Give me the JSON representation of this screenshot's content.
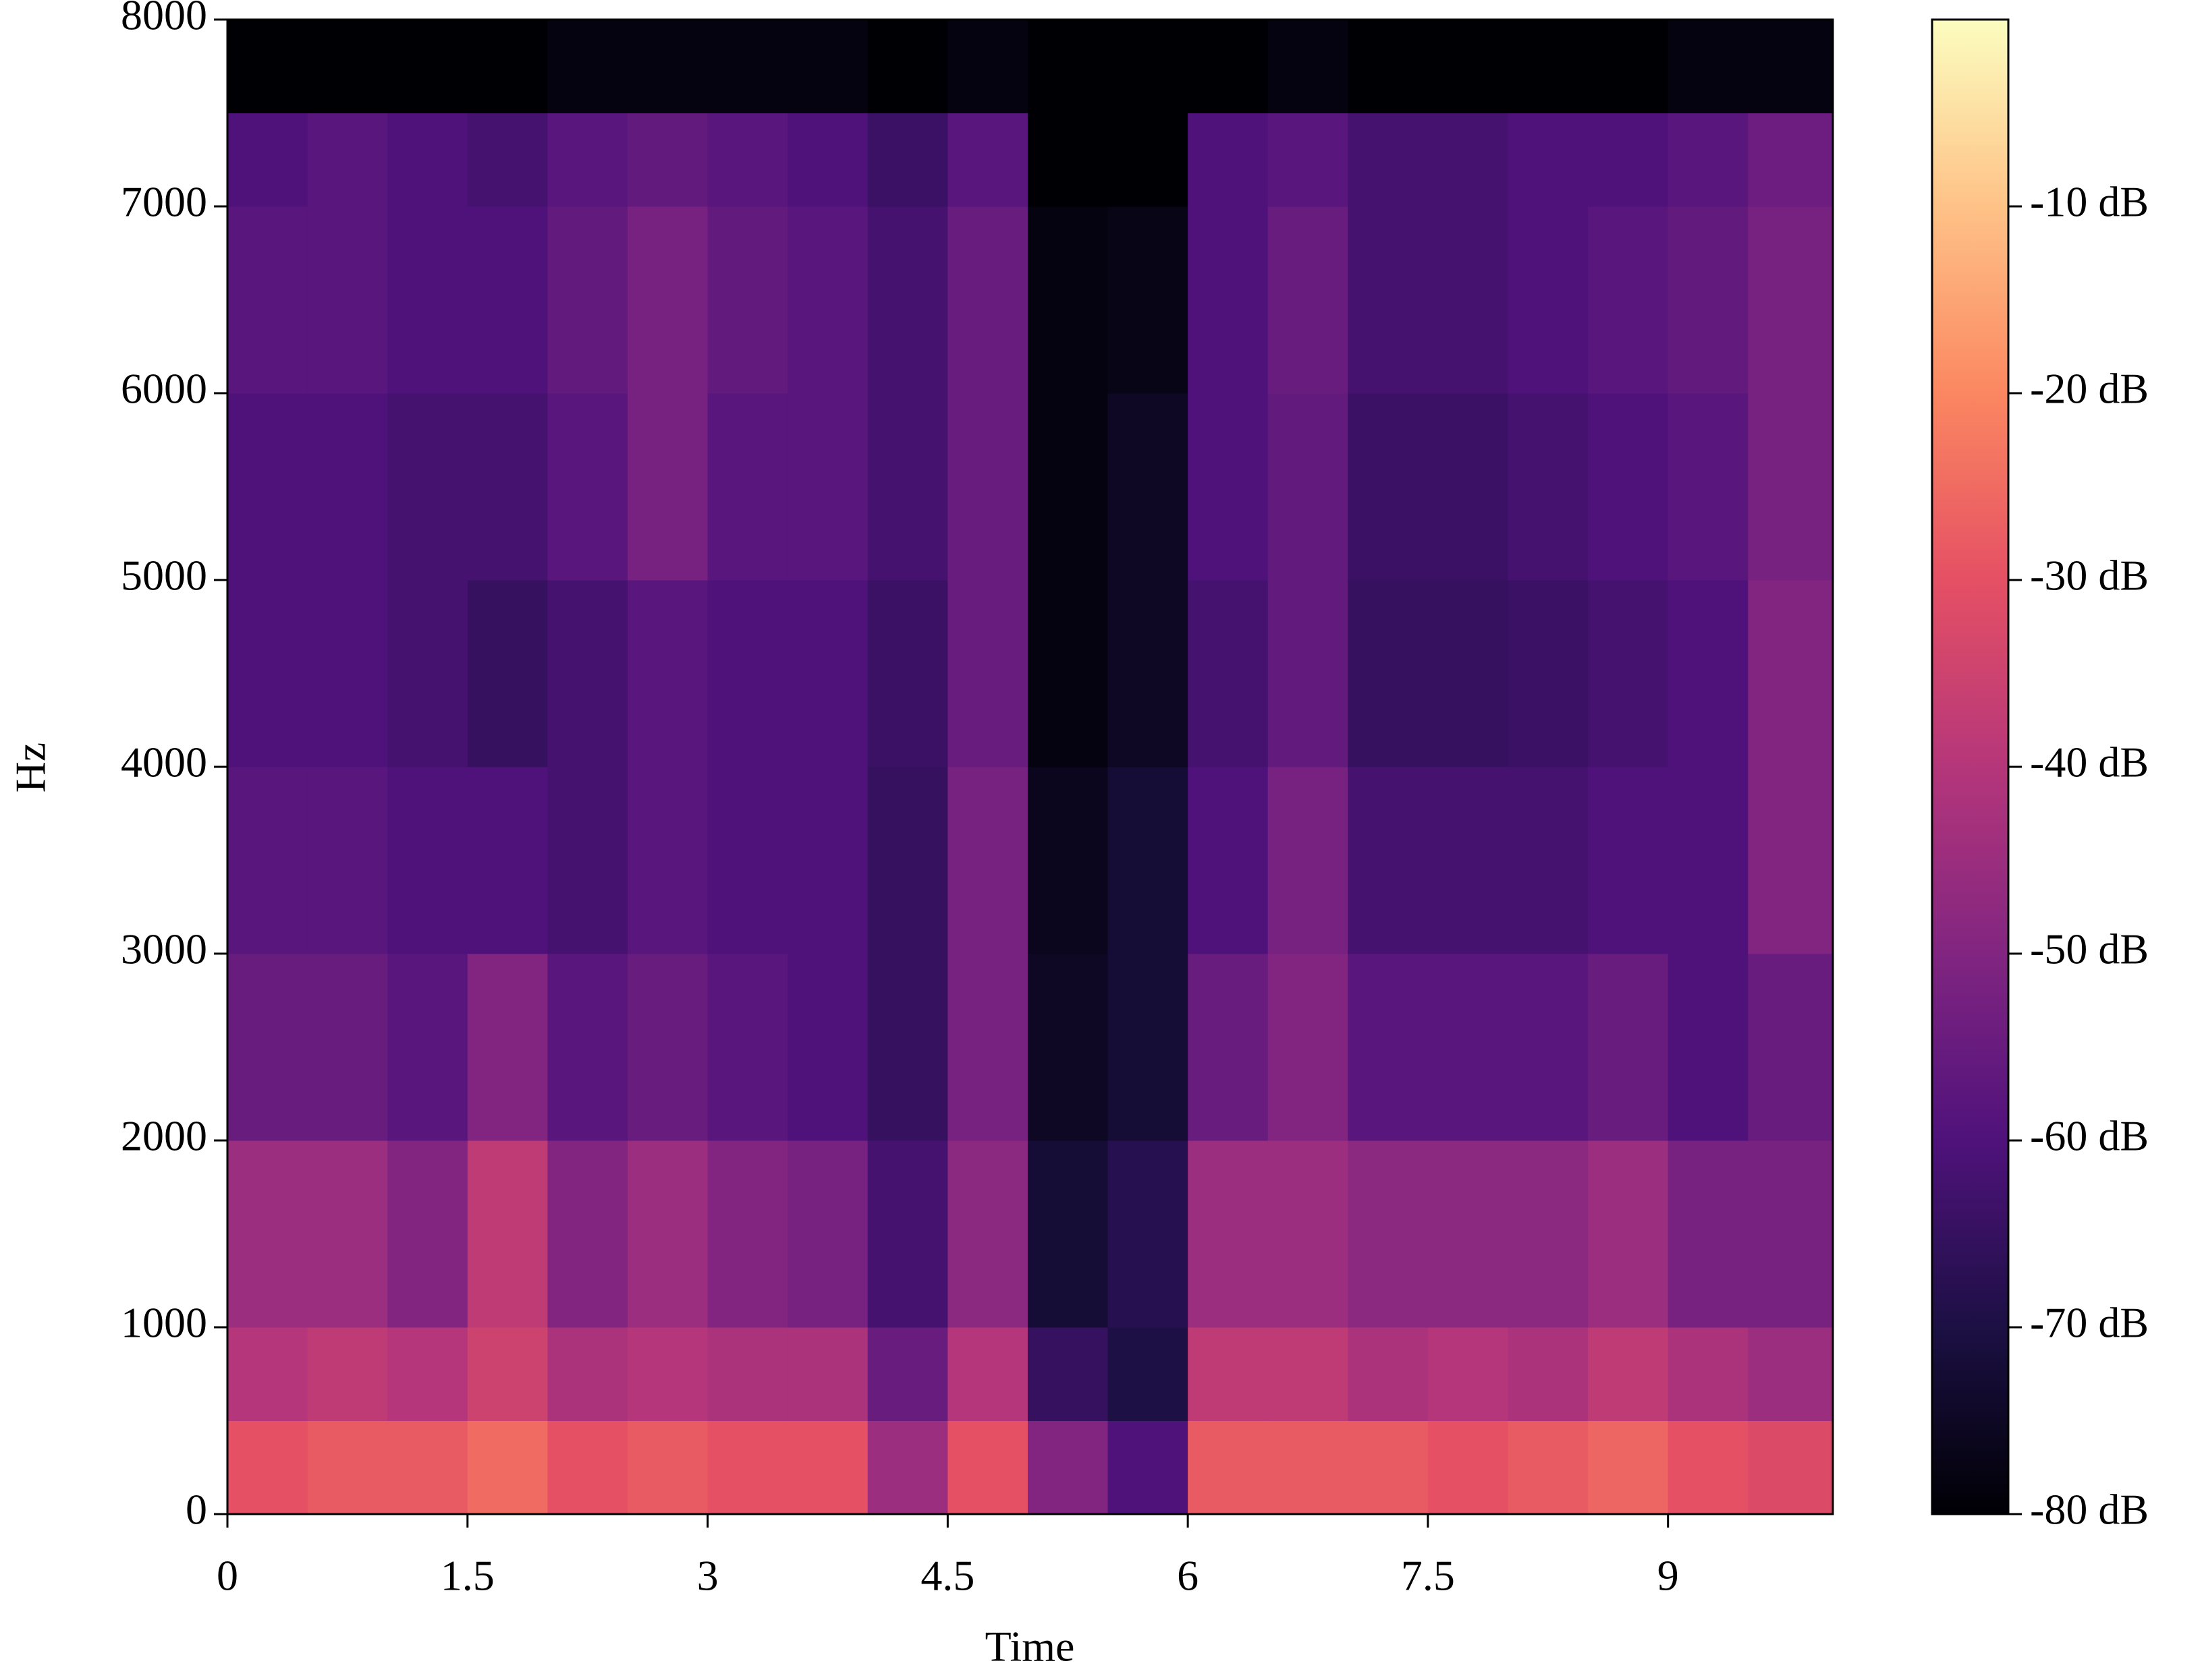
{
  "chart_data": {
    "type": "heatmap",
    "x_label": "Time",
    "y_label": "Hz",
    "x": [
      0,
      0.5,
      1,
      1.5,
      2,
      2.5,
      3,
      3.5,
      4,
      4.5,
      5,
      5.5,
      6,
      6.5,
      7,
      7.5,
      8,
      8.5,
      9,
      9.5,
      10.03
    ],
    "y": [
      0,
      500,
      1000,
      2000,
      3000,
      4000,
      5000,
      6000,
      7000,
      7500,
      8000
    ],
    "values": [
      [
        -30,
        -40,
        -45,
        -55,
        -58,
        -60,
        -60,
        -58,
        -60,
        -80
      ],
      [
        -28,
        -38,
        -45,
        -55,
        -58,
        -60,
        -60,
        -58,
        -58,
        -80
      ],
      [
        -28,
        -40,
        -50,
        -58,
        -60,
        -62,
        -62,
        -60,
        -60,
        -80
      ],
      [
        -25,
        -35,
        -38,
        -50,
        -60,
        -65,
        -62,
        -60,
        -62,
        -80
      ],
      [
        -30,
        -42,
        -50,
        -58,
        -62,
        -62,
        -58,
        -56,
        -58,
        -78
      ],
      [
        -28,
        -40,
        -45,
        -55,
        -58,
        -58,
        -52,
        -52,
        -56,
        -78
      ],
      [
        -30,
        -42,
        -50,
        -58,
        -60,
        -60,
        -58,
        -56,
        -58,
        -78
      ],
      [
        -30,
        -42,
        -52,
        -60,
        -60,
        -60,
        -58,
        -58,
        -60,
        -78
      ],
      [
        -45,
        -55,
        -62,
        -65,
        -65,
        -64,
        -62,
        -62,
        -64,
        -80
      ],
      [
        -30,
        -40,
        -48,
        -52,
        -52,
        -55,
        -55,
        -55,
        -58,
        -78
      ],
      [
        -50,
        -65,
        -72,
        -75,
        -76,
        -78,
        -78,
        -78,
        -80,
        -80
      ],
      [
        -60,
        -70,
        -68,
        -72,
        -72,
        -75,
        -75,
        -77,
        -80,
        -80
      ],
      [
        -28,
        -38,
        -45,
        -55,
        -60,
        -62,
        -60,
        -60,
        -60,
        -80
      ],
      [
        -28,
        -38,
        -45,
        -50,
        -52,
        -56,
        -56,
        -55,
        -58,
        -78
      ],
      [
        -28,
        -42,
        -48,
        -58,
        -62,
        -65,
        -64,
        -62,
        -62,
        -80
      ],
      [
        -30,
        -40,
        -48,
        -58,
        -62,
        -65,
        -64,
        -62,
        -62,
        -80
      ],
      [
        -28,
        -42,
        -48,
        -58,
        -62,
        -64,
        -62,
        -60,
        -60,
        -80
      ],
      [
        -26,
        -38,
        -45,
        -55,
        -60,
        -62,
        -60,
        -58,
        -60,
        -80
      ],
      [
        -30,
        -42,
        -52,
        -60,
        -60,
        -60,
        -58,
        -56,
        -58,
        -78
      ],
      [
        -32,
        -45,
        -52,
        -55,
        -50,
        -50,
        -52,
        -52,
        -54,
        -78
      ]
    ],
    "xlim": [
      0,
      10.03
    ],
    "ylim": [
      0,
      8000
    ],
    "zlim": [
      -80,
      0
    ],
    "xticks": [
      0,
      1.5,
      3,
      4.5,
      6,
      7.5,
      9
    ],
    "yticks": [
      0,
      1000,
      2000,
      3000,
      4000,
      5000,
      6000,
      7000,
      8000
    ],
    "zticks": [
      {
        "value": -10,
        "label": "-10 dB"
      },
      {
        "value": -20,
        "label": "-20 dB"
      },
      {
        "value": -30,
        "label": "-30 dB"
      },
      {
        "value": -40,
        "label": "-40 dB"
      },
      {
        "value": -50,
        "label": "-50 dB"
      },
      {
        "value": -60,
        "label": "-60 dB"
      },
      {
        "value": -70,
        "label": "-70 dB"
      },
      {
        "value": -80,
        "label": "-80 dB"
      }
    ],
    "colorscale": [
      "#000004",
      "#1c1044",
      "#4f127b",
      "#812581",
      "#b5367a",
      "#e55064",
      "#fb8761",
      "#fec287",
      "#fcfdbf"
    ]
  }
}
